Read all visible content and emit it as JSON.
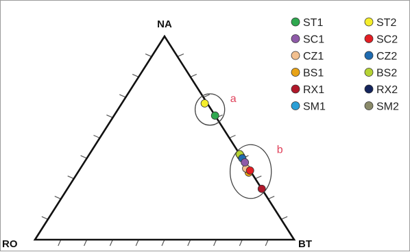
{
  "chart_data": {
    "type": "scatter",
    "subtype": "ternary",
    "vertices": [
      "NA",
      "RO",
      "BT"
    ],
    "grid": false,
    "ticks_per_side": 9,
    "legend_position": "top-right",
    "legend_columns": 2,
    "series": [
      {
        "name": "ST1",
        "color": "#2fa84f",
        "values": {
          "NA": 0.61,
          "RO": 0.0,
          "BT": 0.39
        }
      },
      {
        "name": "ST2",
        "color": "#f5ee2c",
        "values": {
          "NA": 0.67,
          "RO": 0.01,
          "BT": 0.32
        }
      },
      {
        "name": "SC1",
        "color": "#8e5aa8",
        "values": {
          "NA": 0.38,
          "RO": 0.0,
          "BT": 0.62
        }
      },
      {
        "name": "SC2",
        "color": "#e31e24",
        "values": {
          "NA": 0.34,
          "RO": 0.0,
          "BT": 0.66
        }
      },
      {
        "name": "CZ1",
        "color": "#f2c08f",
        "values": {
          "NA": 0.35,
          "RO": 0.01,
          "BT": 0.64
        }
      },
      {
        "name": "CZ2",
        "color": "#1f6bb0",
        "values": {
          "NA": 0.4,
          "RO": 0.0,
          "BT": 0.6
        }
      },
      {
        "name": "BS1",
        "color": "#e8a317",
        "values": {
          "NA": 0.33,
          "RO": 0.01,
          "BT": 0.66
        }
      },
      {
        "name": "BS2",
        "color": "#b5d334",
        "values": {
          "NA": 0.42,
          "RO": 0.0,
          "BT": 0.58
        }
      },
      {
        "name": "RX1",
        "color": "#b0182a",
        "values": {
          "NA": 0.25,
          "RO": 0.0,
          "BT": 0.75
        }
      },
      {
        "name": "RX2",
        "color": "#14245c",
        "values": {
          "NA": 0.42,
          "RO": 0.0,
          "BT": 0.58
        }
      },
      {
        "name": "SM1",
        "color": "#2a9fd6",
        "values": {
          "NA": 0.41,
          "RO": 0.0,
          "BT": 0.59
        }
      },
      {
        "name": "SM2",
        "color": "#8a8a6a",
        "values": {
          "NA": 0.42,
          "RO": 0.0,
          "BT": 0.58
        }
      }
    ],
    "groups": [
      {
        "label": "a",
        "members": [
          "ST1",
          "ST2"
        ]
      },
      {
        "label": "b",
        "members": [
          "SC1",
          "SC2",
          "CZ1",
          "CZ2",
          "BS1",
          "BS2",
          "RX1",
          "RX2",
          "SM1",
          "SM2"
        ]
      }
    ]
  }
}
